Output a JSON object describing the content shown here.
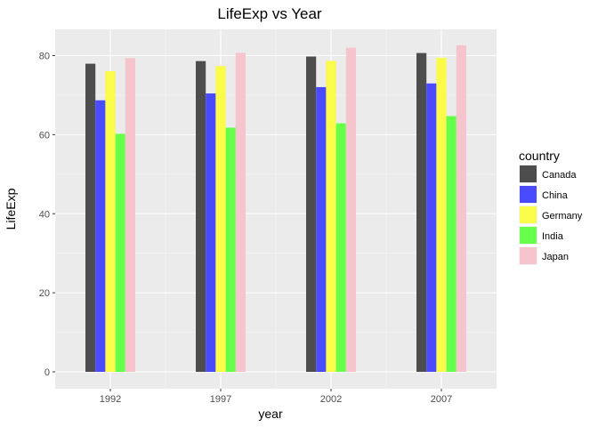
{
  "chart_data": {
    "type": "bar",
    "title": "LifeExp vs Year",
    "xlabel": "year",
    "ylabel": "LifeExp",
    "categories": [
      "1992",
      "1997",
      "2002",
      "2007"
    ],
    "ylim": [
      0,
      83
    ],
    "yticks": [
      0,
      20,
      40,
      60,
      80
    ],
    "grid": true,
    "legend": {
      "title": "country",
      "position": "right"
    },
    "series": [
      {
        "name": "Canada",
        "color": "#4d4d4d",
        "values": [
          77.95,
          78.61,
          79.77,
          80.65
        ]
      },
      {
        "name": "China",
        "color": "#4a4aff",
        "values": [
          68.69,
          70.43,
          72.03,
          72.96
        ]
      },
      {
        "name": "Germany",
        "color": "#fbfb4a",
        "values": [
          76.07,
          77.34,
          78.67,
          79.41
        ]
      },
      {
        "name": "India",
        "color": "#66ff4a",
        "values": [
          60.22,
          61.77,
          62.88,
          64.7
        ]
      },
      {
        "name": "Japan",
        "color": "#f5c4cd",
        "values": [
          79.36,
          80.69,
          82.0,
          82.6
        ]
      }
    ]
  }
}
